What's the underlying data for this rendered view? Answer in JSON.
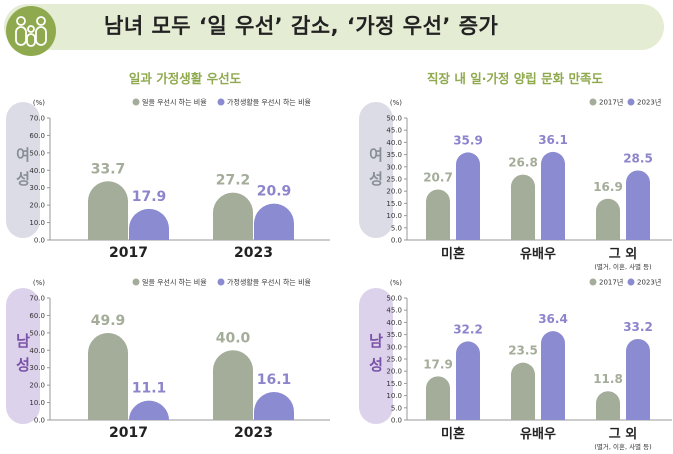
{
  "title": "남녀 모두 ‘일 우선’ 감소, ‘가정 우선’ 증가",
  "colors": {
    "gray": "#a4ad9a",
    "purple": "#8b8bd1",
    "green": "#8faa4e",
    "grayLabel": "#a4ad9a",
    "purpleLabel": "#8d85cc",
    "femaleTag": "#dcdce6",
    "maleTag": "#dcd2eb",
    "femaleText": "#8a8f96",
    "maleText": "#7a52a8"
  },
  "left_subtitle": "일과 가정생활 우선도",
  "right_subtitle": "직장 내 일·가정 양립 문화 만족도",
  "chart_data": [
    {
      "type": "bar",
      "group": "여성",
      "categories": [
        "2017",
        "2023"
      ],
      "series": [
        {
          "name": "일을 우선시 하는 비율",
          "values": [
            33.7,
            27.2
          ]
        },
        {
          "name": "가정생활을 우선시 하는 비율",
          "values": [
            17.9,
            20.9
          ]
        }
      ],
      "ylabel": "(%)",
      "ylim": [
        0,
        70
      ],
      "yticks": [
        "0.0",
        "10.0",
        "20.0",
        "30.0",
        "40.0",
        "50.0",
        "60.0",
        "70.0"
      ],
      "legend": "top-right"
    },
    {
      "type": "bar",
      "group": "남성",
      "categories": [
        "2017",
        "2023"
      ],
      "series": [
        {
          "name": "일을 우선시 하는 비율",
          "values": [
            49.9,
            40.0
          ]
        },
        {
          "name": "가정생활을 우선시 하는 비율",
          "values": [
            11.1,
            16.1
          ]
        }
      ],
      "ylabel": "(%)",
      "ylim": [
        0,
        70
      ],
      "yticks": [
        "0.0",
        "10.0",
        "20.0",
        "30.0",
        "40.0",
        "50.0",
        "60.0",
        "70.0"
      ],
      "legend": "top-right"
    },
    {
      "type": "bar",
      "group": "여성",
      "categories": [
        "미혼",
        "유배우",
        "그 외"
      ],
      "category_notes": [
        "",
        "",
        "(별거, 이혼, 사별 등)"
      ],
      "series": [
        {
          "name": "2017년",
          "values": [
            20.7,
            26.8,
            16.9
          ]
        },
        {
          "name": "2023년",
          "values": [
            35.9,
            36.1,
            28.5
          ]
        }
      ],
      "ylabel": "(%)",
      "ylim": [
        0,
        50
      ],
      "yticks": [
        "0.0",
        "5.0",
        "10.0",
        "15.0",
        "20.0",
        "25.0",
        "30.0",
        "35.0",
        "40.0",
        "45.0",
        "50.0"
      ],
      "legend": "top-right"
    },
    {
      "type": "bar",
      "group": "남성",
      "categories": [
        "미혼",
        "유배우",
        "그 외"
      ],
      "category_notes": [
        "",
        "",
        "(별거, 이혼, 사별 등)"
      ],
      "series": [
        {
          "name": "2017년",
          "values": [
            17.9,
            23.5,
            11.8
          ]
        },
        {
          "name": "2023년",
          "values": [
            32.2,
            36.4,
            33.2
          ]
        }
      ],
      "ylabel": "(%)",
      "ylim": [
        0,
        50
      ],
      "yticks": [
        "0.0",
        "5.0",
        "10.0",
        "15.0",
        "20.0",
        "25.0",
        "30.0",
        "35.0",
        "40.0",
        "45.0",
        "50.0"
      ],
      "legend": "top-right"
    }
  ]
}
